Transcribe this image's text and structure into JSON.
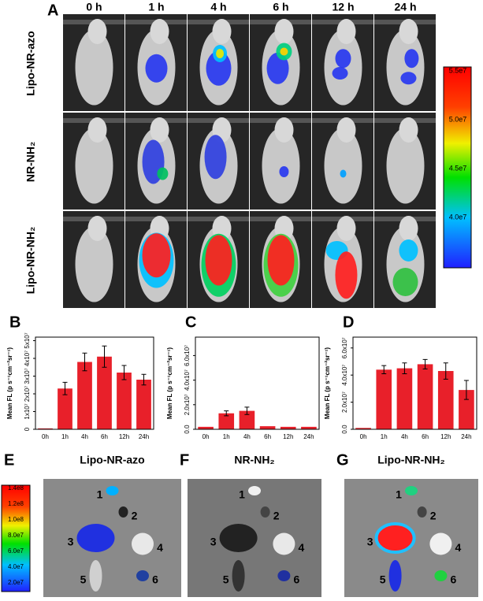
{
  "panel_a": {
    "label": "A",
    "times": [
      "0 h",
      "1 h",
      "4 h",
      "6 h",
      "12 h",
      "24 h"
    ],
    "rows": [
      "Lipo-NR-azo",
      "NR-NH₂",
      "Lipo-NR-NH₂"
    ],
    "colorbar": [
      "5.5e7",
      "5.0e7",
      "4.5e7",
      "4.0e7"
    ]
  },
  "chart_data": [
    {
      "type": "bar",
      "label": "B",
      "y_label": "Mean FL (p s⁻¹cm⁻²sr⁻¹)",
      "color": "#e8202a",
      "categories": [
        "0h",
        "1h",
        "4h",
        "6h",
        "12h",
        "24h"
      ],
      "values": [
        500000,
        23000000,
        38000000,
        41000000,
        32000000,
        28000000
      ],
      "errors": [
        0,
        3500000,
        5000000,
        6000000,
        4000000,
        3000000
      ],
      "ylim": [
        0,
        52000000
      ],
      "yticks": [
        0,
        {
          "value": 10000000,
          "label": "1x10⁷"
        },
        {
          "value": 20000000,
          "label": "2x10⁷"
        },
        {
          "value": 30000000,
          "label": "3x10⁷"
        },
        {
          "value": 40000000,
          "label": "4x10⁷"
        },
        {
          "value": 50000000,
          "label": "5x10⁷"
        }
      ]
    },
    {
      "type": "bar",
      "label": "C",
      "y_label": "Mean FL (p s⁻¹cm⁻²sr⁻¹)",
      "color": "#e8202a",
      "categories": [
        "0h",
        "1h",
        "4h",
        "6h",
        "12h",
        "24h"
      ],
      "values": [
        2000000,
        13000000,
        15000000,
        2500000,
        2000000,
        2000000
      ],
      "errors": [
        0,
        2000000,
        3000000,
        0,
        0,
        0
      ],
      "ylim": [
        0,
        75000000
      ],
      "yticks": [
        {
          "value": 0,
          "label": "0.0"
        },
        {
          "value": 20000000,
          "label": "2.0x10⁷"
        },
        {
          "value": 40000000,
          "label": "4.0x10⁷"
        },
        {
          "value": 60000000,
          "label": "6.0x10⁷"
        }
      ]
    },
    {
      "type": "bar",
      "label": "D",
      "y_label": "Mean FL (p s⁻¹cm⁻²sr⁻¹)",
      "color": "#e8202a",
      "categories": [
        "0h",
        "1h",
        "4h",
        "6h",
        "12h",
        "24h"
      ],
      "values": [
        1000000,
        44000000,
        45000000,
        48000000,
        43000000,
        29000000
      ],
      "errors": [
        0,
        3000000,
        4000000,
        3500000,
        6000000,
        7000000
      ],
      "ylim": [
        0,
        68000000
      ],
      "yticks": [
        {
          "value": 0,
          "label": "0.0"
        },
        {
          "value": 20000000,
          "label": "2.0x10⁷"
        },
        {
          "value": 40000000,
          "label": "4.0x10⁷"
        },
        {
          "value": 60000000,
          "label": "6.0x10⁷"
        }
      ]
    }
  ],
  "organs": [
    {
      "label": "E",
      "title": "Lipo-NR-azo",
      "colorbar": [
        "1.4e8",
        "1.2e8",
        "1.0e8",
        "8.0e7",
        "6.0e7",
        "4.0e7",
        "2.0e7"
      ],
      "numbers": [
        "1",
        "2",
        "3",
        "4",
        "5",
        "6"
      ]
    },
    {
      "label": "F",
      "title": "NR-NH₂",
      "numbers": [
        "1",
        "2",
        "3",
        "4",
        "5",
        "6"
      ]
    },
    {
      "label": "G",
      "title": "Lipo-NR-NH₂",
      "numbers": [
        "1",
        "2",
        "3",
        "4",
        "5",
        "6"
      ]
    }
  ]
}
